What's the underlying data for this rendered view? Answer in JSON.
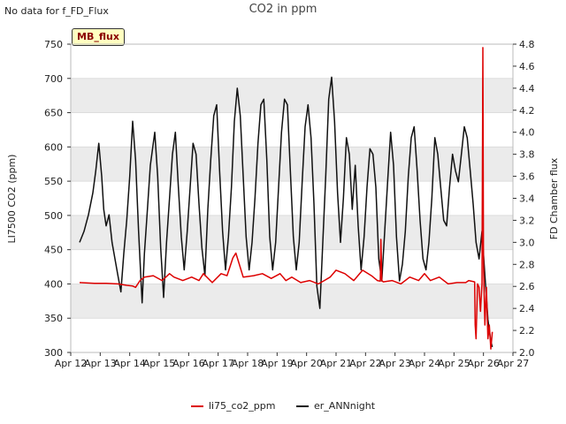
{
  "header": {
    "nodata": "No data for f_FD_Flux"
  },
  "badge": {
    "label": "MB_flux"
  },
  "chart_data": {
    "type": "line",
    "title": "CO2 in ppm",
    "xlabel": "",
    "ylabel": "LI7500 CO2 (ppm)",
    "y2label": "FD Chamber flux",
    "x_tick_labels": [
      "Apr 12",
      "Apr 13",
      "Apr 14",
      "Apr 15",
      "Apr 16",
      "Apr 17",
      "Apr 18",
      "Apr 19",
      "Apr 20",
      "Apr 21",
      "Apr 22",
      "Apr 23",
      "Apr 24",
      "Apr 25",
      "Apr 26",
      "Apr 27"
    ],
    "xlim": [
      12,
      27
    ],
    "ylim": [
      300,
      750
    ],
    "y_ticks": [
      "300",
      "350",
      "400",
      "450",
      "500",
      "550",
      "600",
      "650",
      "700",
      "750"
    ],
    "y2lim": [
      2.0,
      4.8
    ],
    "y2_ticks": [
      "2.0",
      "2.2",
      "2.4",
      "2.6",
      "2.8",
      "3.0",
      "3.2",
      "3.4",
      "3.6",
      "3.8",
      "4.0",
      "4.2",
      "4.4",
      "4.6",
      "4.8"
    ],
    "colors": {
      "li75": "#dd0000",
      "er": "#111111",
      "band": "#ebebeb"
    },
    "series": [
      {
        "name": "li75_co2_ppm",
        "axis": "left",
        "x": [
          12.3,
          12.8,
          13.2,
          13.6,
          13.9,
          14.1,
          14.2,
          14.35,
          14.5,
          14.8,
          15.1,
          15.35,
          15.5,
          15.8,
          16.1,
          16.35,
          16.5,
          16.8,
          17.1,
          17.3,
          17.4,
          17.5,
          17.6,
          17.85,
          18.2,
          18.5,
          18.8,
          19.1,
          19.3,
          19.5,
          19.8,
          20.1,
          20.4,
          20.6,
          20.8,
          21.0,
          21.3,
          21.6,
          21.9,
          22.2,
          22.4,
          22.5,
          22.52,
          22.55,
          22.6,
          22.9,
          23.2,
          23.5,
          23.8,
          24.0,
          24.2,
          24.5,
          24.8,
          25.1,
          25.4,
          25.5,
          25.7,
          25.72,
          25.75,
          25.8,
          25.85,
          25.9,
          25.95,
          25.98,
          26.0,
          26.02,
          26.05,
          26.1,
          26.15,
          26.2,
          26.25,
          26.3
        ],
        "y": [
          402,
          401,
          401,
          400,
          398,
          397,
          395,
          405,
          410,
          412,
          405,
          415,
          410,
          405,
          410,
          405,
          415,
          402,
          415,
          412,
          425,
          438,
          445,
          410,
          412,
          415,
          408,
          415,
          405,
          410,
          402,
          405,
          400,
          405,
          410,
          420,
          415,
          405,
          420,
          412,
          405,
          404,
          465,
          405,
          403,
          405,
          400,
          410,
          405,
          415,
          405,
          410,
          400,
          402,
          402,
          405,
          403,
          340,
          320,
          400,
          395,
          360,
          400,
          745,
          430,
          395,
          340,
          395,
          320,
          340,
          305,
          330
        ]
      },
      {
        "name": "er_ANNnight",
        "axis": "right",
        "x": [
          12.3,
          12.45,
          12.6,
          12.75,
          12.85,
          12.95,
          13.05,
          13.12,
          13.2,
          13.3,
          13.4,
          13.5,
          13.6,
          13.7,
          13.8,
          13.9,
          14.0,
          14.1,
          14.2,
          14.3,
          14.42,
          14.5,
          14.6,
          14.7,
          14.85,
          14.95,
          15.05,
          15.15,
          15.25,
          15.35,
          15.45,
          15.55,
          15.65,
          15.75,
          15.85,
          15.95,
          16.05,
          16.15,
          16.25,
          16.35,
          16.45,
          16.55,
          16.65,
          16.75,
          16.85,
          16.95,
          17.05,
          17.15,
          17.25,
          17.35,
          17.45,
          17.55,
          17.65,
          17.75,
          17.85,
          17.95,
          18.05,
          18.15,
          18.25,
          18.35,
          18.45,
          18.55,
          18.65,
          18.75,
          18.85,
          18.95,
          19.05,
          19.15,
          19.25,
          19.35,
          19.45,
          19.55,
          19.65,
          19.75,
          19.85,
          19.95,
          20.05,
          20.15,
          20.25,
          20.35,
          20.45,
          20.55,
          20.65,
          20.75,
          20.85,
          20.95,
          21.05,
          21.15,
          21.25,
          21.35,
          21.45,
          21.55,
          21.65,
          21.75,
          21.85,
          21.95,
          22.05,
          22.15,
          22.25,
          22.35,
          22.45,
          22.55,
          22.65,
          22.75,
          22.85,
          22.95,
          23.05,
          23.15,
          23.25,
          23.35,
          23.45,
          23.55,
          23.65,
          23.75,
          23.85,
          23.95,
          24.05,
          24.15,
          24.25,
          24.35,
          24.45,
          24.55,
          24.65,
          24.75,
          24.85,
          24.95,
          25.05,
          25.15,
          25.25,
          25.35,
          25.45,
          25.55,
          25.65,
          25.75,
          25.85,
          25.95,
          26.05,
          26.15,
          26.25,
          26.3
        ],
        "y": [
          3.0,
          3.1,
          3.25,
          3.45,
          3.65,
          3.9,
          3.6,
          3.3,
          3.15,
          3.25,
          3.0,
          2.85,
          2.7,
          2.55,
          2.9,
          3.2,
          3.6,
          4.1,
          3.75,
          3.1,
          2.45,
          2.9,
          3.3,
          3.7,
          4.0,
          3.6,
          2.95,
          2.5,
          3.0,
          3.4,
          3.8,
          4.0,
          3.5,
          3.05,
          2.75,
          3.1,
          3.5,
          3.9,
          3.8,
          3.35,
          2.95,
          2.7,
          3.3,
          3.75,
          4.15,
          4.25,
          3.65,
          3.1,
          2.75,
          3.05,
          3.5,
          4.1,
          4.4,
          4.15,
          3.6,
          3.05,
          2.75,
          3.0,
          3.4,
          3.9,
          4.25,
          4.3,
          3.75,
          3.05,
          2.75,
          3.0,
          3.5,
          4.0,
          4.3,
          4.25,
          3.65,
          3.05,
          2.75,
          3.0,
          3.55,
          4.05,
          4.25,
          3.95,
          3.35,
          2.6,
          2.4,
          3.0,
          3.6,
          4.3,
          4.5,
          4.1,
          3.45,
          3.0,
          3.4,
          3.95,
          3.8,
          3.3,
          3.7,
          3.15,
          2.75,
          3.05,
          3.5,
          3.85,
          3.8,
          3.5,
          2.85,
          2.65,
          3.1,
          3.55,
          4.0,
          3.7,
          3.05,
          2.65,
          2.8,
          3.1,
          3.6,
          3.95,
          4.05,
          3.65,
          3.2,
          2.85,
          2.75,
          3.0,
          3.4,
          3.95,
          3.8,
          3.5,
          3.2,
          3.15,
          3.5,
          3.8,
          3.65,
          3.55,
          3.8,
          4.05,
          3.95,
          3.65,
          3.35,
          3.0,
          2.85,
          3.1,
          2.7,
          2.3,
          2.1,
          2.05
        ]
      }
    ]
  }
}
